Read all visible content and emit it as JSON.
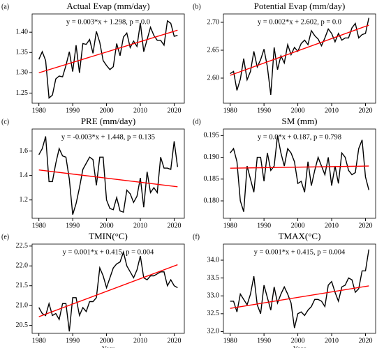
{
  "chart_data": [
    {
      "type": "line",
      "panel": "(a)",
      "title": "Actual Evap (mm/day)",
      "annotation": "y = 0.003*x + 1.298, p = 0.0",
      "x": [
        1980,
        1981,
        1982,
        1983,
        1984,
        1985,
        1986,
        1987,
        1988,
        1989,
        1990,
        1991,
        1992,
        1993,
        1994,
        1995,
        1996,
        1997,
        1998,
        1999,
        2000,
        2001,
        2002,
        2003,
        2004,
        2005,
        2006,
        2007,
        2008,
        2009,
        2010,
        2011,
        2012,
        2013,
        2014,
        2015,
        2016,
        2017,
        2018,
        2019,
        2020,
        2021
      ],
      "series": [
        {
          "color": "#000000",
          "values": [
            1.333,
            1.352,
            1.33,
            1.238,
            1.245,
            1.285,
            1.292,
            1.29,
            1.318,
            1.352,
            1.303,
            1.368,
            1.3,
            1.372,
            1.37,
            1.382,
            1.348,
            1.402,
            1.375,
            1.33,
            1.318,
            1.308,
            1.315,
            1.372,
            1.342,
            1.388,
            1.398,
            1.362,
            1.378,
            1.365,
            1.423,
            1.352,
            1.382,
            1.412,
            1.392,
            1.38,
            1.38,
            1.368,
            1.428,
            1.422,
            1.39,
            1.392
          ]
        },
        {
          "color": "#ff0000",
          "x": [
            1980,
            2021
          ],
          "values": [
            1.3,
            1.405
          ]
        }
      ],
      "xlim": [
        1978,
        2023
      ],
      "xticks": [
        1980,
        1990,
        2000,
        2010,
        2020
      ],
      "ylim": [
        1.225,
        1.445
      ],
      "yticks": [
        {
          "value": 1.25,
          "label": "1.25"
        },
        {
          "value": 1.3,
          "label": "1.30"
        },
        {
          "value": 1.35,
          "label": "1.35"
        },
        {
          "value": 1.4,
          "label": "1.40"
        }
      ]
    },
    {
      "type": "line",
      "panel": "(b)",
      "title": "Potential Evap (mm/day)",
      "annotation": "y = 0.002*x + 2.602, p = 0.0",
      "x": [
        1980,
        1981,
        1982,
        1983,
        1984,
        1985,
        1986,
        1987,
        1988,
        1989,
        1990,
        1991,
        1992,
        1993,
        1994,
        1995,
        1996,
        1997,
        1998,
        1999,
        2000,
        2001,
        2002,
        2003,
        2004,
        2005,
        2006,
        2007,
        2008,
        2009,
        2010,
        2011,
        2012,
        2013,
        2014,
        2015,
        2016,
        2017,
        2018,
        2019,
        2020,
        2021
      ],
      "series": [
        {
          "color": "#000000",
          "values": [
            2.608,
            2.612,
            2.578,
            2.598,
            2.635,
            2.597,
            2.612,
            2.648,
            2.62,
            2.633,
            2.652,
            2.62,
            2.57,
            2.655,
            2.615,
            2.64,
            2.627,
            2.66,
            2.642,
            2.655,
            2.648,
            2.662,
            2.668,
            2.66,
            2.685,
            2.676,
            2.67,
            2.658,
            2.672,
            2.688,
            2.68,
            2.665,
            2.68,
            2.668,
            2.672,
            2.672,
            2.69,
            2.698,
            2.672,
            2.678,
            2.68,
            2.708
          ]
        },
        {
          "color": "#ff0000",
          "x": [
            1980,
            2021
          ],
          "values": [
            2.605,
            2.695
          ]
        }
      ],
      "xlim": [
        1978,
        2023
      ],
      "xticks": [
        1980,
        1990,
        2000,
        2010,
        2020
      ],
      "ylim": [
        2.555,
        2.715
      ],
      "yticks": [
        {
          "value": 2.6,
          "label": "2.60"
        },
        {
          "value": 2.65,
          "label": "2.65"
        },
        {
          "value": 2.7,
          "label": "2.70"
        }
      ]
    },
    {
      "type": "line",
      "panel": "(c)",
      "title": "PRE (mm/day)",
      "annotation": "y = -0.003*x + 1.448, p = 0.135",
      "x": [
        1980,
        1981,
        1982,
        1983,
        1984,
        1985,
        1986,
        1987,
        1988,
        1989,
        1990,
        1991,
        1992,
        1993,
        1994,
        1995,
        1996,
        1997,
        1998,
        1999,
        2000,
        2001,
        2002,
        2003,
        2004,
        2005,
        2006,
        2007,
        2008,
        2009,
        2010,
        2011,
        2012,
        2013,
        2014,
        2015,
        2016,
        2017,
        2018,
        2019,
        2020,
        2021
      ],
      "series": [
        {
          "color": "#000000",
          "values": [
            1.57,
            1.62,
            1.72,
            1.35,
            1.35,
            1.5,
            1.62,
            1.56,
            1.55,
            1.37,
            1.08,
            1.17,
            1.3,
            1.45,
            1.5,
            1.55,
            1.53,
            1.32,
            1.55,
            1.55,
            1.2,
            1.13,
            1.12,
            1.22,
            1.11,
            1.1,
            1.28,
            1.25,
            1.18,
            1.23,
            1.38,
            1.14,
            1.43,
            1.26,
            1.3,
            1.26,
            1.55,
            1.46,
            1.46,
            1.45,
            1.68,
            1.47
          ]
        },
        {
          "color": "#ff0000",
          "x": [
            1980,
            2021
          ],
          "values": [
            1.445,
            1.308
          ]
        }
      ],
      "xlim": [
        1978,
        2023
      ],
      "xticks": [
        1980,
        1990,
        2000,
        2010,
        2020
      ],
      "ylim": [
        1.05,
        1.78
      ],
      "yticks": [
        1.2,
        1.4,
        1.6
      ]
    },
    {
      "type": "line",
      "panel": "(d)",
      "title": "SM (mm)",
      "annotation": "y = 0.0*x + 0.187, p = 0.798",
      "x": [
        1980,
        1981,
        1982,
        1983,
        1984,
        1985,
        1986,
        1987,
        1988,
        1989,
        1990,
        1991,
        1992,
        1993,
        1994,
        1995,
        1996,
        1997,
        1998,
        1999,
        2000,
        2001,
        2002,
        2003,
        2004,
        2005,
        2006,
        2007,
        2008,
        2009,
        2010,
        2011,
        2012,
        2013,
        2014,
        2015,
        2016,
        2017,
        2018,
        2019,
        2020,
        2021
      ],
      "series": [
        {
          "color": "#000000",
          "values": [
            0.191,
            0.192,
            0.189,
            0.18,
            0.1775,
            0.188,
            0.185,
            0.182,
            0.19,
            0.19,
            0.1845,
            0.191,
            0.187,
            0.188,
            0.195,
            0.191,
            0.188,
            0.192,
            0.191,
            0.189,
            0.184,
            0.1845,
            0.182,
            0.189,
            0.1835,
            0.187,
            0.19,
            0.188,
            0.186,
            0.19,
            0.1835,
            0.188,
            0.184,
            0.191,
            0.19,
            0.187,
            0.186,
            0.1865,
            0.192,
            0.194,
            0.1855,
            0.1825
          ]
        },
        {
          "color": "#ff0000",
          "x": [
            1980,
            2021
          ],
          "values": [
            0.1875,
            0.188
          ]
        }
      ],
      "xlim": [
        1978,
        2023
      ],
      "xticks": [
        1980,
        1990,
        2000,
        2010,
        2020
      ],
      "ylim": [
        0.176,
        0.1965
      ],
      "yticks": [
        {
          "value": 0.18,
          "label": "0.180"
        },
        {
          "value": 0.185,
          "label": "0.185"
        },
        {
          "value": 0.19,
          "label": "0.190"
        },
        {
          "value": 0.195,
          "label": "0.195"
        }
      ]
    },
    {
      "type": "line",
      "panel": "(e)",
      "title": "TMIN(°C)",
      "annotation": "y = 0.001*x + 0.415, p = 0.004",
      "xlabel": "Year",
      "x": [
        1980,
        1981,
        1982,
        1983,
        1984,
        1985,
        1986,
        1987,
        1988,
        1989,
        1990,
        1991,
        1992,
        1993,
        1994,
        1995,
        1996,
        1997,
        1998,
        1999,
        2000,
        2001,
        2002,
        2003,
        2004,
        2005,
        2006,
        2007,
        2008,
        2009,
        2010,
        2011,
        2012,
        2013,
        2014,
        2015,
        2016,
        2017,
        2018,
        2019,
        2020,
        2021
      ],
      "series": [
        {
          "color": "#000000",
          "values": [
            20.95,
            20.8,
            20.75,
            21.05,
            20.75,
            20.8,
            20.65,
            21.05,
            21.05,
            20.35,
            21.2,
            21.2,
            20.75,
            20.95,
            20.85,
            21.1,
            21.1,
            21.2,
            21.95,
            21.75,
            21.45,
            21.7,
            21.95,
            22.05,
            22.1,
            22.35,
            22.0,
            21.85,
            21.7,
            21.9,
            22.25,
            21.7,
            21.65,
            21.75,
            21.75,
            21.8,
            21.85,
            21.85,
            21.5,
            21.65,
            21.5,
            21.45
          ]
        },
        {
          "color": "#ff0000",
          "x": [
            1980,
            2021
          ],
          "values": [
            20.72,
            22.03
          ]
        }
      ],
      "xlim": [
        1978,
        2023
      ],
      "xticks": [
        1980,
        1990,
        2000,
        2010,
        2020
      ],
      "ylim": [
        20.3,
        22.55
      ],
      "yticks": [
        20.5,
        {
          "value": 21,
          "label": "21.0"
        },
        21.5,
        {
          "value": 22,
          "label": "22.0"
        },
        22.5
      ]
    },
    {
      "type": "line",
      "panel": "(f)",
      "title": "TMAX(°C)",
      "annotation": "y = 0.001*x + 0.415, p = 0.004",
      "xlabel": "Year",
      "x": [
        1980,
        1981,
        1982,
        1983,
        1984,
        1985,
        1986,
        1987,
        1988,
        1989,
        1990,
        1991,
        1992,
        1993,
        1994,
        1995,
        1996,
        1997,
        1998,
        1999,
        2000,
        2001,
        2002,
        2003,
        2004,
        2005,
        2006,
        2007,
        2008,
        2009,
        2010,
        2011,
        2012,
        2013,
        2014,
        2015,
        2016,
        2017,
        2018,
        2019,
        2020,
        2021
      ],
      "series": [
        {
          "color": "#000000",
          "values": [
            32.85,
            32.85,
            32.55,
            33.05,
            32.9,
            32.75,
            33.05,
            33.55,
            32.75,
            32.5,
            33.3,
            32.95,
            32.6,
            33.25,
            32.8,
            33.05,
            33.25,
            33.05,
            32.8,
            32.1,
            32.5,
            32.55,
            32.45,
            32.6,
            32.7,
            32.9,
            32.9,
            32.85,
            32.7,
            33.3,
            33.4,
            33.1,
            32.85,
            33.25,
            33.3,
            33.5,
            33.45,
            33.1,
            33.2,
            33.7,
            33.7,
            34.3
          ]
        },
        {
          "color": "#ff0000",
          "x": [
            1980,
            2021
          ],
          "values": [
            32.65,
            33.28
          ]
        }
      ],
      "xlim": [
        1978,
        2023
      ],
      "xticks": [
        1980,
        1990,
        2000,
        2010,
        2020
      ],
      "ylim": [
        31.95,
        34.45
      ],
      "yticks": [
        {
          "value": 32,
          "label": "32.0"
        },
        32.5,
        {
          "value": 33,
          "label": "33.0"
        },
        33.5,
        {
          "value": 34,
          "label": "34.0"
        }
      ]
    }
  ]
}
